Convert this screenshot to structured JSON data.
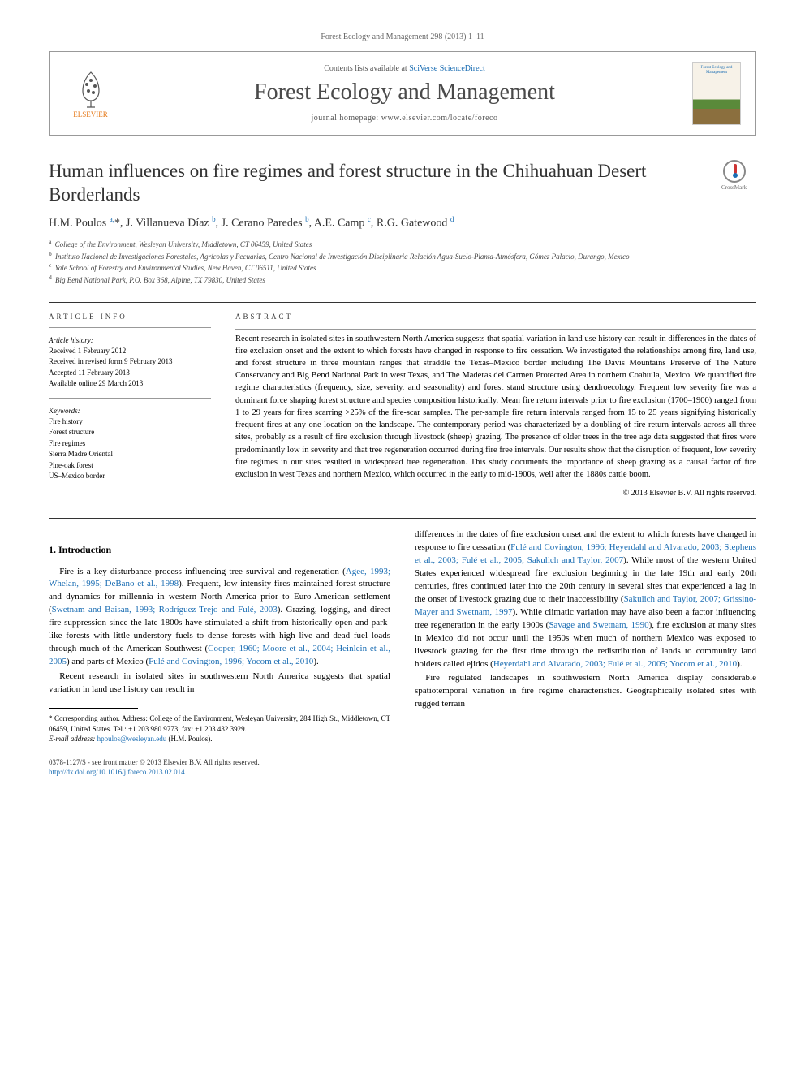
{
  "header": {
    "citation_line": "Forest Ecology and Management 298 (2013) 1–11",
    "contents_prefix": "Contents lists available at ",
    "contents_link": "SciVerse ScienceDirect",
    "journal_name": "Forest Ecology and Management",
    "homepage_prefix": "journal homepage: ",
    "homepage_url": "www.elsevier.com/locate/foreco",
    "publisher": "ELSEVIER",
    "cover_text": "Forest Ecology and Management",
    "crossmark": "CrossMark"
  },
  "article": {
    "title": "Human influences on fire regimes and forest structure in the Chihuahuan Desert Borderlands",
    "authors_html": "H.M. Poulos <sup>a,</sup>*, J. Villanueva Díaz <sup>b</sup>, J. Cerano Paredes <sup>b</sup>, A.E. Camp <sup>c</sup>, R.G. Gatewood <sup>d</sup>",
    "affiliations": [
      {
        "sup": "a",
        "text": "College of the Environment, Wesleyan University, Middletown, CT 06459, United States"
      },
      {
        "sup": "b",
        "text": "Instituto Nacional de Investigaciones Forestales, Agrícolas y Pecuarias, Centro Nacional de Investigación Disciplinaria Relación Agua-Suelo-Planta-Atmósfera, Gómez Palacio, Durango, Mexico"
      },
      {
        "sup": "c",
        "text": "Yale School of Forestry and Environmental Studies, New Haven, CT 06511, United States"
      },
      {
        "sup": "d",
        "text": "Big Bend National Park, P.O. Box 368, Alpine, TX 79830, United States"
      }
    ]
  },
  "info": {
    "heading": "ARTICLE INFO",
    "history_head": "Article history:",
    "history": [
      "Received 1 February 2012",
      "Received in revised form 9 February 2013",
      "Accepted 11 February 2013",
      "Available online 29 March 2013"
    ],
    "keywords_head": "Keywords:",
    "keywords": [
      "Fire history",
      "Forest structure",
      "Fire regimes",
      "Sierra Madre Oriental",
      "Pine-oak forest",
      "US–Mexico border"
    ]
  },
  "abstract": {
    "heading": "ABSTRACT",
    "text": "Recent research in isolated sites in southwestern North America suggests that spatial variation in land use history can result in differences in the dates of fire exclusion onset and the extent to which forests have changed in response to fire cessation. We investigated the relationships among fire, land use, and forest structure in three mountain ranges that straddle the Texas–Mexico border including The Davis Mountains Preserve of The Nature Conservancy and Big Bend National Park in west Texas, and The Maderas del Carmen Protected Area in northern Coahuila, Mexico. We quantified fire regime characteristics (frequency, size, severity, and seasonality) and forest stand structure using dendroecology. Frequent low severity fire was a dominant force shaping forest structure and species composition historically. Mean fire return intervals prior to fire exclusion (1700–1900) ranged from 1 to 29 years for fires scarring >25% of the fire-scar samples. The per-sample fire return intervals ranged from 15 to 25 years signifying historically frequent fires at any one location on the landscape. The contemporary period was characterized by a doubling of fire return intervals across all three sites, probably as a result of fire exclusion through livestock (sheep) grazing. The presence of older trees in the tree age data suggested that fires were predominantly low in severity and that tree regeneration occurred during fire free intervals. Our results show that the disruption of frequent, low severity fire regimes in our sites resulted in widespread tree regeneration. This study documents the importance of sheep grazing as a causal factor of fire exclusion in west Texas and northern Mexico, which occurred in the early to mid-1900s, well after the 1880s cattle boom.",
    "copyright": "© 2013 Elsevier B.V. All rights reserved."
  },
  "section1": {
    "heading": "1. Introduction",
    "col1": {
      "p1_pre": "Fire is a key disturbance process influencing tree survival and regeneration (",
      "p1_l1": "Agee, 1993; Whelan, 1995; DeBano et al., 1998",
      "p1_mid1": "). Frequent, low intensity fires maintained forest structure and dynamics for millennia in western North America prior to Euro-American settlement (",
      "p1_l2": "Swetnam and Baisan, 1993; Rodríguez-Trejo and Fulé, 2003",
      "p1_mid2": "). Grazing, logging, and direct fire suppression since the late 1800s have stimulated a shift from historically open and park-like forests with little understory fuels to dense forests with high live and dead fuel loads through much of the American Southwest (",
      "p1_l3": "Cooper, 1960; Moore et al., 2004; Heinlein et al., 2005",
      "p1_mid3": ") and parts of Mexico (",
      "p1_l4": "Fulé and Covington, 1996; Yocom et al., 2010",
      "p1_end": ").",
      "p2": "Recent research in isolated sites in southwestern North America suggests that spatial variation in land use history can result in"
    },
    "col2": {
      "p1_pre": "differences in the dates of fire exclusion onset and the extent to which forests have changed in response to fire cessation (",
      "p1_l1": "Fulé and Covington, 1996; Heyerdahl and Alvarado, 2003; Stephens et al., 2003; Fulé et al., 2005; Sakulich and Taylor, 2007",
      "p1_mid1": "). While most of the western United States experienced widespread fire exclusion beginning in the late 19th and early 20th centuries, fires continued later into the 20th century in several sites that experienced a lag in the onset of livestock grazing due to their inaccessibility (",
      "p1_l2": "Sakulich and Taylor, 2007; Grissino-Mayer and Swetnam, 1997",
      "p1_mid2": "). While climatic variation may have also been a factor influencing tree regeneration in the early 1900s (",
      "p1_l3": "Savage and Swetnam, 1990",
      "p1_mid3": "), fire exclusion at many sites in Mexico did not occur until the 1950s when much of northern Mexico was exposed to livestock grazing for the first time through the redistribution of lands to community land holders called ejidos (",
      "p1_l4": "Heyerdahl and Alvarado, 2003; Fulé et al., 2005; Yocom et al., 2010",
      "p1_end": ").",
      "p2": "Fire regulated landscapes in southwestern North America display considerable spatiotemporal variation in fire regime characteristics. Geographically isolated sites with rugged terrain"
    }
  },
  "footnotes": {
    "corr": "* Corresponding author. Address: College of the Environment, Wesleyan University, 284 High St., Middletown, CT 06459, United States. Tel.: +1 203 980 9773; fax: +1 203 432 3929.",
    "email_label": "E-mail address: ",
    "email": "hpoulos@wesleyan.edu",
    "email_suffix": " (H.M. Poulos)."
  },
  "footer": {
    "line1": "0378-1127/$ - see front matter © 2013 Elsevier B.V. All rights reserved.",
    "doi": "http://dx.doi.org/10.1016/j.foreco.2013.02.014"
  },
  "colors": {
    "link": "#1a6db3",
    "orange": "#e67817"
  }
}
